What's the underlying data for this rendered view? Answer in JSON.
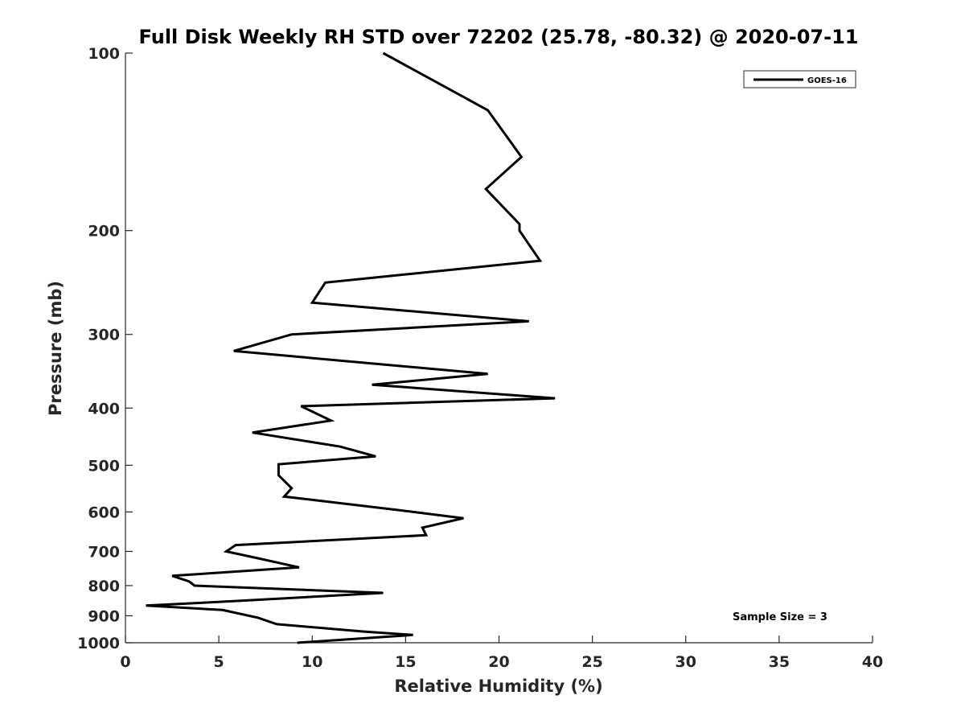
{
  "chart_data": {
    "type": "line",
    "title": "Full Disk Weekly RH STD over 72202 (25.78, -80.32) @ 2020-07-11",
    "xlabel": "Relative Humidity (%)",
    "ylabel": "Pressure (mb)",
    "xlim": [
      0,
      40
    ],
    "ylim": [
      100,
      1000
    ],
    "yscale": "log",
    "y_reversed": true,
    "grid": false,
    "x_ticks": [
      0,
      5,
      10,
      15,
      20,
      25,
      30,
      35,
      40
    ],
    "x_tick_labels": [
      "0",
      "5",
      "10",
      "15",
      "20",
      "25",
      "30",
      "35",
      "40"
    ],
    "y_ticks": [
      100,
      200,
      300,
      400,
      500,
      600,
      700,
      800,
      900,
      1000
    ],
    "y_tick_labels": [
      "100",
      "200",
      "300",
      "400",
      "500",
      "600",
      "700",
      "800",
      "900",
      "1000"
    ],
    "legend": {
      "position": "top-right",
      "entries": [
        "GOES-16"
      ]
    },
    "annotations": [
      "Sample Size = 3"
    ],
    "series": [
      {
        "name": "GOES-16",
        "color": "#000000",
        "x": [
          13.8,
          19.4,
          21.2,
          19.3,
          21.1,
          21.1,
          22.2,
          10.7,
          10.0,
          21.6,
          8.9,
          5.8,
          19.4,
          13.2,
          23.0,
          9.4,
          11.0,
          6.8,
          11.5,
          13.4,
          8.2,
          8.2,
          8.9,
          8.5,
          14.5,
          18.1,
          15.9,
          16.1,
          5.9,
          5.4,
          7.0,
          9.3,
          2.5,
          3.4,
          3.7,
          13.8,
          5.8,
          1.1,
          5.2,
          7.1,
          8.1,
          12.7,
          15.4,
          9.2
        ],
        "y": [
          100,
          125,
          150,
          170,
          195,
          200,
          225,
          245,
          265,
          285,
          300,
          320,
          350,
          365,
          385,
          397,
          420,
          440,
          465,
          483,
          498,
          520,
          547,
          565,
          595,
          615,
          638,
          657,
          683,
          700,
          718,
          745,
          770,
          787,
          800,
          823,
          850,
          865,
          880,
          907,
          930,
          957,
          970,
          1000
        ]
      }
    ]
  }
}
